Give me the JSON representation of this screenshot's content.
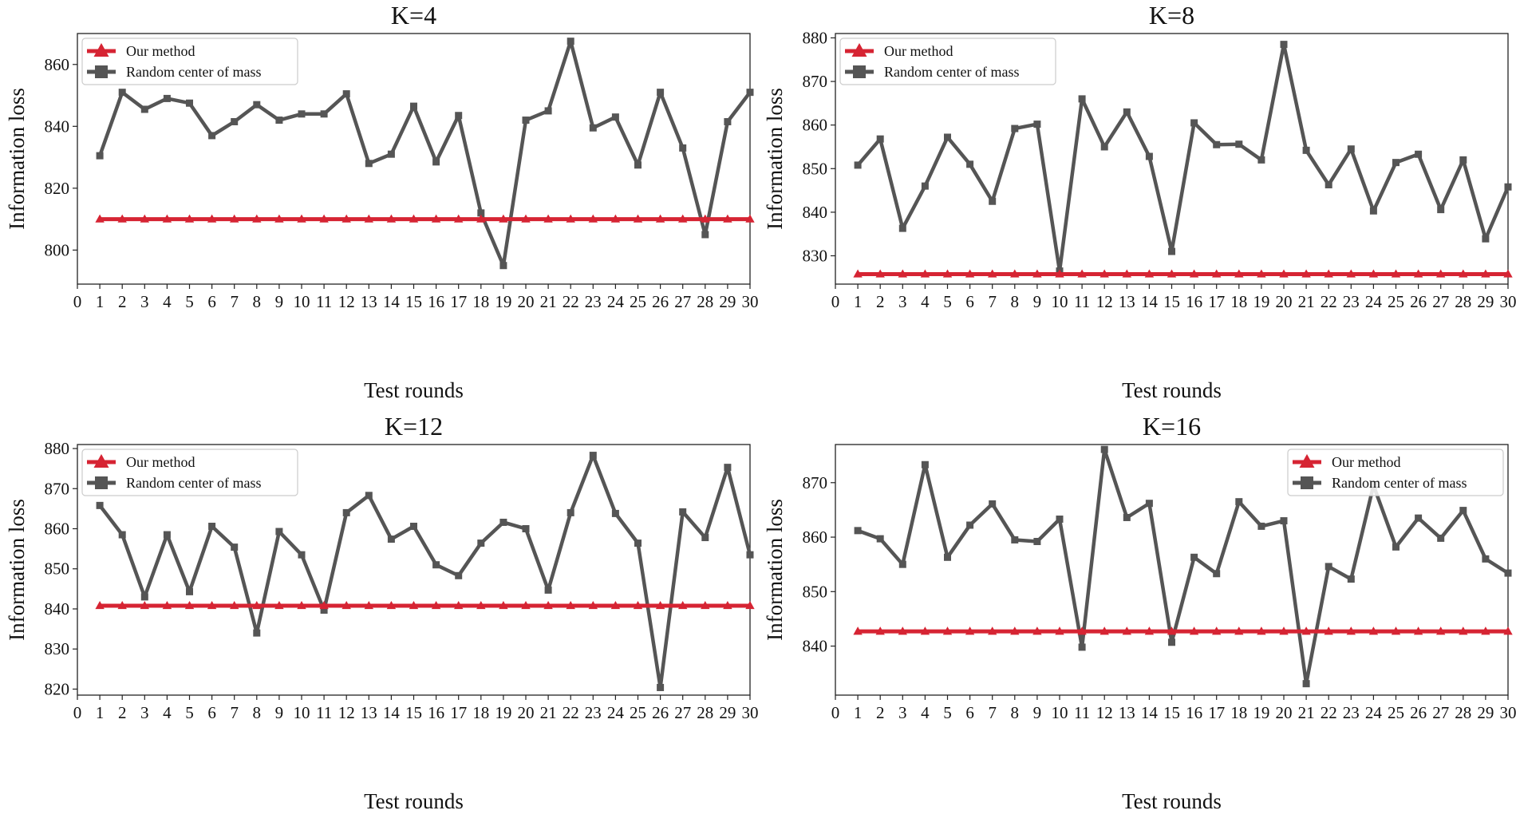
{
  "chart_data": [
    {
      "type": "line",
      "title": "K=4",
      "xlabel": "Test rounds",
      "ylabel": "Information loss",
      "xlim": [
        0,
        30
      ],
      "ylim": [
        789,
        870
      ],
      "yticks": [
        800,
        820,
        840,
        860
      ],
      "xticks": [
        0,
        1,
        2,
        3,
        4,
        5,
        6,
        7,
        8,
        9,
        10,
        11,
        12,
        13,
        14,
        15,
        16,
        17,
        18,
        19,
        20,
        21,
        22,
        23,
        24,
        25,
        26,
        27,
        28,
        29,
        30
      ],
      "legend_position": "top-left",
      "x": [
        1,
        2,
        3,
        4,
        5,
        6,
        7,
        8,
        9,
        10,
        11,
        12,
        13,
        14,
        15,
        16,
        17,
        18,
        19,
        20,
        21,
        22,
        23,
        24,
        25,
        26,
        27,
        28,
        29,
        30
      ],
      "series": [
        {
          "name": "Our method",
          "color": "#d62433",
          "marker": "triangle",
          "values": [
            810,
            810,
            810,
            810,
            810,
            810,
            810,
            810,
            810,
            810,
            810,
            810,
            810,
            810,
            810,
            810,
            810,
            810,
            810,
            810,
            810,
            810,
            810,
            810,
            810,
            810,
            810,
            810,
            810,
            810
          ]
        },
        {
          "name": "Random center of mass",
          "color": "#555555",
          "marker": "square",
          "values": [
            830.5,
            851,
            845.5,
            849,
            847.5,
            837,
            841.5,
            847,
            842,
            844,
            844,
            850.5,
            828,
            831,
            846.5,
            828.5,
            843.5,
            812,
            795,
            842,
            845,
            867.5,
            839.5,
            843,
            827.5,
            851,
            833,
            805,
            841.5,
            851
          ]
        }
      ]
    },
    {
      "type": "line",
      "title": "K=8",
      "xlabel": "Test rounds",
      "ylabel": "Information loss",
      "xlim": [
        0,
        30
      ],
      "ylim": [
        823.5,
        881
      ],
      "yticks": [
        830,
        840,
        850,
        860,
        870,
        880
      ],
      "xticks": [
        0,
        1,
        2,
        3,
        4,
        5,
        6,
        7,
        8,
        9,
        10,
        11,
        12,
        13,
        14,
        15,
        16,
        17,
        18,
        19,
        20,
        21,
        22,
        23,
        24,
        25,
        26,
        27,
        28,
        29,
        30
      ],
      "legend_position": "top-left",
      "x": [
        1,
        2,
        3,
        4,
        5,
        6,
        7,
        8,
        9,
        10,
        11,
        12,
        13,
        14,
        15,
        16,
        17,
        18,
        19,
        20,
        21,
        22,
        23,
        24,
        25,
        26,
        27,
        28,
        29,
        30
      ],
      "series": [
        {
          "name": "Our method",
          "color": "#d62433",
          "marker": "triangle",
          "values": [
            825.8,
            825.8,
            825.8,
            825.8,
            825.8,
            825.8,
            825.8,
            825.8,
            825.8,
            825.8,
            825.8,
            825.8,
            825.8,
            825.8,
            825.8,
            825.8,
            825.8,
            825.8,
            825.8,
            825.8,
            825.8,
            825.8,
            825.8,
            825.8,
            825.8,
            825.8,
            825.8,
            825.8,
            825.8,
            825.8
          ]
        },
        {
          "name": "Random center of mass",
          "color": "#555555",
          "marker": "square",
          "values": [
            850.8,
            856.8,
            836.3,
            846,
            857.2,
            851,
            842.5,
            859.2,
            860.2,
            826.5,
            866,
            855,
            863,
            852.8,
            831,
            860.5,
            855.5,
            855.6,
            852,
            878.5,
            854.2,
            846.3,
            854.5,
            840.3,
            851.4,
            853.3,
            840.6,
            852,
            833.9,
            845.8
          ]
        }
      ]
    },
    {
      "type": "line",
      "title": "K=12",
      "xlabel": "Test rounds",
      "ylabel": "Information loss",
      "xlim": [
        0,
        30
      ],
      "ylim": [
        818.5,
        881
      ],
      "yticks": [
        820,
        830,
        840,
        850,
        860,
        870,
        880
      ],
      "xticks": [
        0,
        1,
        2,
        3,
        4,
        5,
        6,
        7,
        8,
        9,
        10,
        11,
        12,
        13,
        14,
        15,
        16,
        17,
        18,
        19,
        20,
        21,
        22,
        23,
        24,
        25,
        26,
        27,
        28,
        29,
        30
      ],
      "legend_position": "top-left",
      "x": [
        1,
        2,
        3,
        4,
        5,
        6,
        7,
        8,
        9,
        10,
        11,
        12,
        13,
        14,
        15,
        16,
        17,
        18,
        19,
        20,
        21,
        22,
        23,
        24,
        25,
        26,
        27,
        28,
        29,
        30
      ],
      "series": [
        {
          "name": "Our method",
          "color": "#d62433",
          "marker": "triangle",
          "values": [
            840.8,
            840.8,
            840.8,
            840.8,
            840.8,
            840.8,
            840.8,
            840.8,
            840.8,
            840.8,
            840.8,
            840.8,
            840.8,
            840.8,
            840.8,
            840.8,
            840.8,
            840.8,
            840.8,
            840.8,
            840.8,
            840.8,
            840.8,
            840.8,
            840.8,
            840.8,
            840.8,
            840.8,
            840.8,
            840.8
          ]
        },
        {
          "name": "Random center of mass",
          "color": "#555555",
          "marker": "square",
          "values": [
            865.8,
            858.5,
            843,
            858.5,
            844.3,
            860.6,
            855.4,
            834,
            859.3,
            853.5,
            839.7,
            864,
            868.3,
            857.4,
            860.6,
            851,
            848.3,
            856.4,
            861.6,
            860,
            844.7,
            864,
            878.3,
            863.8,
            856.4,
            820.4,
            864.2,
            857.8,
            875.3,
            853.5
          ]
        }
      ]
    },
    {
      "type": "line",
      "title": "K=16",
      "xlabel": "Test rounds",
      "ylabel": "Information loss",
      "xlim": [
        0,
        30
      ],
      "ylim": [
        831,
        877
      ],
      "yticks": [
        840,
        850,
        860,
        870
      ],
      "xticks": [
        0,
        1,
        2,
        3,
        4,
        5,
        6,
        7,
        8,
        9,
        10,
        11,
        12,
        13,
        14,
        15,
        16,
        17,
        18,
        19,
        20,
        21,
        22,
        23,
        24,
        25,
        26,
        27,
        28,
        29,
        30
      ],
      "legend_position": "top-right",
      "x": [
        1,
        2,
        3,
        4,
        5,
        6,
        7,
        8,
        9,
        10,
        11,
        12,
        13,
        14,
        15,
        16,
        17,
        18,
        19,
        20,
        21,
        22,
        23,
        24,
        25,
        26,
        27,
        28,
        29,
        30
      ],
      "series": [
        {
          "name": "Our method",
          "color": "#d62433",
          "marker": "triangle",
          "values": [
            842.7,
            842.7,
            842.7,
            842.7,
            842.7,
            842.7,
            842.7,
            842.7,
            842.7,
            842.7,
            842.7,
            842.7,
            842.7,
            842.7,
            842.7,
            842.7,
            842.7,
            842.7,
            842.7,
            842.7,
            842.7,
            842.7,
            842.7,
            842.7,
            842.7,
            842.7,
            842.7,
            842.7,
            842.7,
            842.7
          ]
        },
        {
          "name": "Random center of mass",
          "color": "#555555",
          "marker": "square",
          "values": [
            861.2,
            859.7,
            855,
            873.3,
            856.3,
            862.2,
            866.1,
            859.5,
            859.2,
            863.3,
            839.8,
            876.1,
            863.6,
            866.2,
            840.7,
            856.3,
            853.3,
            866.5,
            862,
            863,
            833.1,
            854.6,
            852.3,
            869.5,
            858.2,
            863.5,
            859.8,
            864.9,
            856,
            853.4
          ]
        }
      ]
    }
  ]
}
